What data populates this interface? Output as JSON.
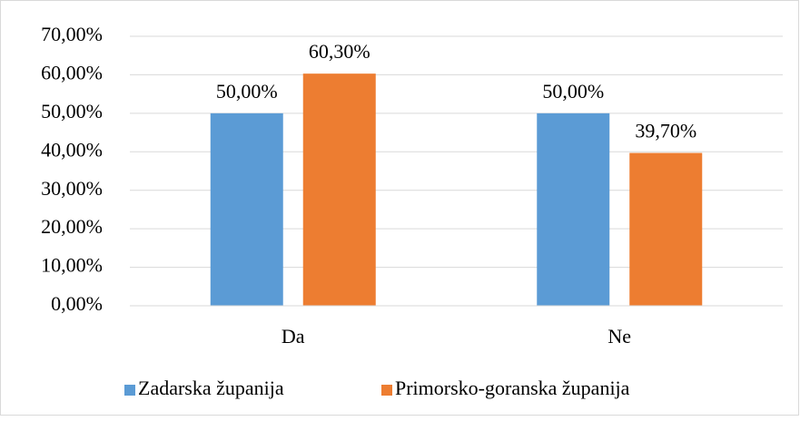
{
  "chart_data": {
    "type": "bar",
    "categories": [
      "Da",
      "Ne"
    ],
    "series": [
      {
        "name": "Zadarska županija",
        "color": "#5b9bd5",
        "values": [
          50,
          50
        ],
        "value_labels": [
          "50,00%",
          "50,00%"
        ]
      },
      {
        "name": "Primorsko-goranska županija",
        "color": "#ed7d31",
        "values": [
          60.3,
          39.7
        ],
        "value_labels": [
          "60,30%",
          "39,70%"
        ]
      }
    ],
    "ylim": [
      0,
      70
    ],
    "yticks": [
      {
        "value": 0,
        "label": "0,00%"
      },
      {
        "value": 10,
        "label": "10,00%"
      },
      {
        "value": 20,
        "label": "20,00%"
      },
      {
        "value": 30,
        "label": "30,00%"
      },
      {
        "value": 40,
        "label": "40,00%"
      },
      {
        "value": 50,
        "label": "50,00%"
      },
      {
        "value": 60,
        "label": "60,00%"
      },
      {
        "value": 70,
        "label": "70,00%"
      }
    ],
    "grid": true,
    "legend": "bottom"
  }
}
